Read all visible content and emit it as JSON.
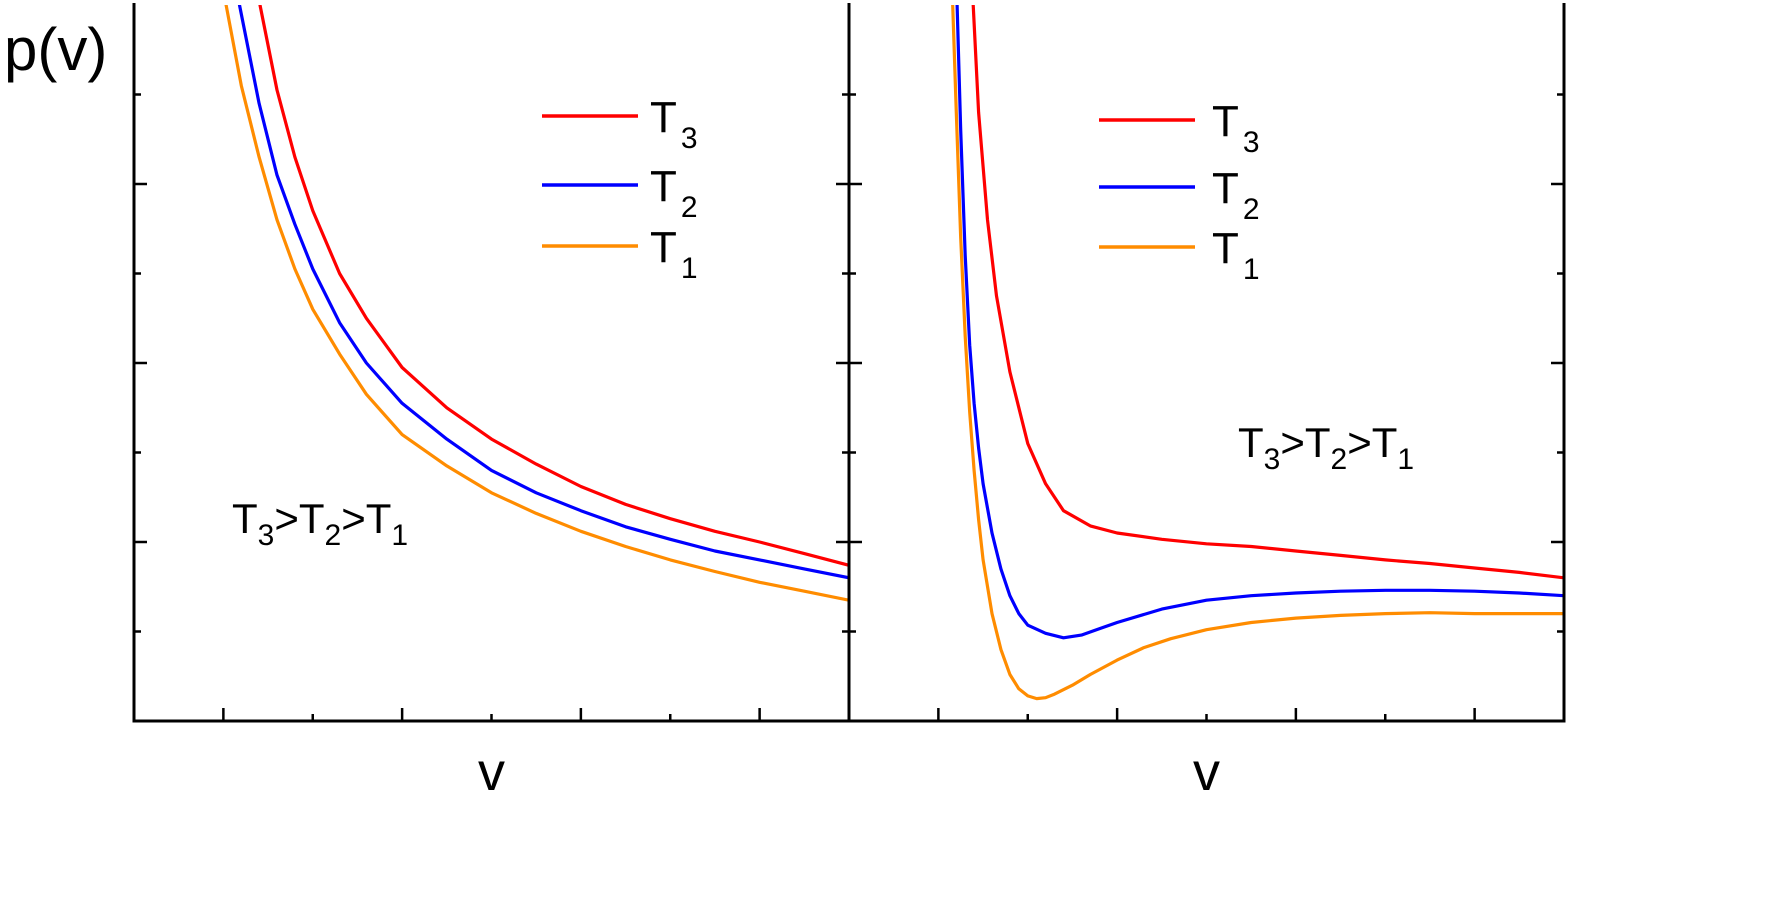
{
  "chart_data": [
    {
      "type": "line",
      "ylabel": "p(v)",
      "xlabel": "v",
      "xlim": [
        0,
        8
      ],
      "ylim": [
        0,
        8
      ],
      "x_major_ticks": [
        1,
        3,
        5,
        7
      ],
      "x_minor_ticks": [
        2,
        4,
        6
      ],
      "y_major_ticks": [
        2,
        4,
        6
      ],
      "y_minor_ticks": [
        1,
        3,
        5,
        7
      ],
      "grid": false,
      "legend_position": "top-right",
      "annotation": {
        "parts": [
          "T",
          "3",
          ">T",
          "2",
          ">T",
          "1"
        ]
      },
      "series": [
        {
          "name": "T3",
          "label_main": "T",
          "label_sub": "3",
          "color": "#ff0000",
          "x": [
            1.41,
            1.6,
            1.8,
            2.0,
            2.3,
            2.6,
            3.0,
            3.5,
            4.0,
            4.5,
            5.0,
            5.5,
            6.0,
            6.5,
            7.0,
            7.5,
            8.0
          ],
          "y": [
            8.0,
            7.05,
            6.3,
            5.7,
            5.0,
            4.5,
            3.95,
            3.5,
            3.15,
            2.87,
            2.62,
            2.42,
            2.26,
            2.12,
            2.0,
            1.87,
            1.74
          ]
        },
        {
          "name": "T2",
          "label_main": "T",
          "label_sub": "2",
          "color": "#0000ff",
          "x": [
            1.18,
            1.4,
            1.6,
            1.8,
            2.0,
            2.3,
            2.6,
            3.0,
            3.5,
            4.0,
            4.5,
            5.0,
            5.5,
            6.0,
            6.5,
            7.0,
            7.5,
            8.0
          ],
          "y": [
            8.0,
            6.9,
            6.1,
            5.55,
            5.05,
            4.45,
            4.0,
            3.55,
            3.15,
            2.8,
            2.55,
            2.35,
            2.17,
            2.03,
            1.9,
            1.8,
            1.7,
            1.6
          ]
        },
        {
          "name": "T1",
          "label_main": "T",
          "label_sub": "1",
          "color": "#ff8c00",
          "x": [
            1.03,
            1.2,
            1.4,
            1.6,
            1.8,
            2.0,
            2.3,
            2.6,
            3.0,
            3.5,
            4.0,
            4.5,
            5.0,
            5.5,
            6.0,
            6.5,
            7.0,
            7.5,
            8.0
          ],
          "y": [
            8.0,
            7.1,
            6.3,
            5.6,
            5.05,
            4.6,
            4.1,
            3.65,
            3.2,
            2.85,
            2.55,
            2.32,
            2.12,
            1.95,
            1.8,
            1.67,
            1.55,
            1.45,
            1.35
          ]
        }
      ]
    },
    {
      "type": "line",
      "xlabel": "v",
      "xlim": [
        0,
        8
      ],
      "ylim": [
        0,
        8
      ],
      "x_major_ticks": [
        1,
        3,
        5,
        7
      ],
      "x_minor_ticks": [
        2,
        4,
        6
      ],
      "y_major_ticks": [
        2,
        4,
        6
      ],
      "y_minor_ticks": [
        1,
        3,
        5,
        7
      ],
      "grid": false,
      "legend_position": "top-right",
      "annotation": {
        "parts": [
          "T",
          "3",
          ">T",
          "2",
          ">T",
          "1"
        ]
      },
      "series": [
        {
          "name": "T3",
          "label_main": "T",
          "label_sub": "3",
          "color": "#ff0000",
          "x": [
            1.39,
            1.45,
            1.55,
            1.65,
            1.8,
            2.0,
            2.2,
            2.4,
            2.7,
            3.0,
            3.5,
            4.0,
            4.5,
            5.0,
            5.5,
            6.0,
            6.5,
            7.0,
            7.5,
            8.0
          ],
          "y": [
            8.0,
            6.8,
            5.6,
            4.75,
            3.9,
            3.1,
            2.65,
            2.35,
            2.18,
            2.1,
            2.03,
            1.98,
            1.95,
            1.9,
            1.85,
            1.8,
            1.76,
            1.71,
            1.66,
            1.6
          ]
        },
        {
          "name": "T2",
          "label_main": "T",
          "label_sub": "2",
          "color": "#0000ff",
          "x": [
            1.21,
            1.25,
            1.3,
            1.35,
            1.4,
            1.45,
            1.5,
            1.6,
            1.7,
            1.8,
            1.9,
            2.0,
            2.2,
            2.4,
            2.6,
            2.8,
            3.0,
            3.5,
            4.0,
            4.5,
            5.0,
            5.5,
            6.0,
            6.5,
            7.0,
            7.5,
            8.0
          ],
          "y": [
            8.0,
            6.6,
            5.2,
            4.2,
            3.55,
            3.05,
            2.65,
            2.1,
            1.7,
            1.4,
            1.2,
            1.07,
            0.98,
            0.93,
            0.96,
            1.03,
            1.1,
            1.25,
            1.35,
            1.4,
            1.43,
            1.45,
            1.46,
            1.46,
            1.45,
            1.43,
            1.4
          ]
        },
        {
          "name": "T1",
          "label_main": "T",
          "label_sub": "1",
          "color": "#ff8c00",
          "x": [
            1.16,
            1.2,
            1.25,
            1.3,
            1.35,
            1.4,
            1.45,
            1.5,
            1.6,
            1.7,
            1.8,
            1.9,
            2.0,
            2.1,
            2.2,
            2.3,
            2.5,
            2.7,
            3.0,
            3.3,
            3.6,
            4.0,
            4.5,
            5.0,
            5.5,
            6.0,
            6.5,
            7.0,
            7.5,
            8.0
          ],
          "y": [
            8.0,
            6.8,
            5.4,
            4.3,
            3.45,
            2.8,
            2.25,
            1.8,
            1.2,
            0.8,
            0.52,
            0.36,
            0.28,
            0.25,
            0.26,
            0.3,
            0.4,
            0.52,
            0.68,
            0.82,
            0.92,
            1.02,
            1.1,
            1.15,
            1.18,
            1.2,
            1.21,
            1.2,
            1.2,
            1.2
          ]
        }
      ]
    }
  ]
}
